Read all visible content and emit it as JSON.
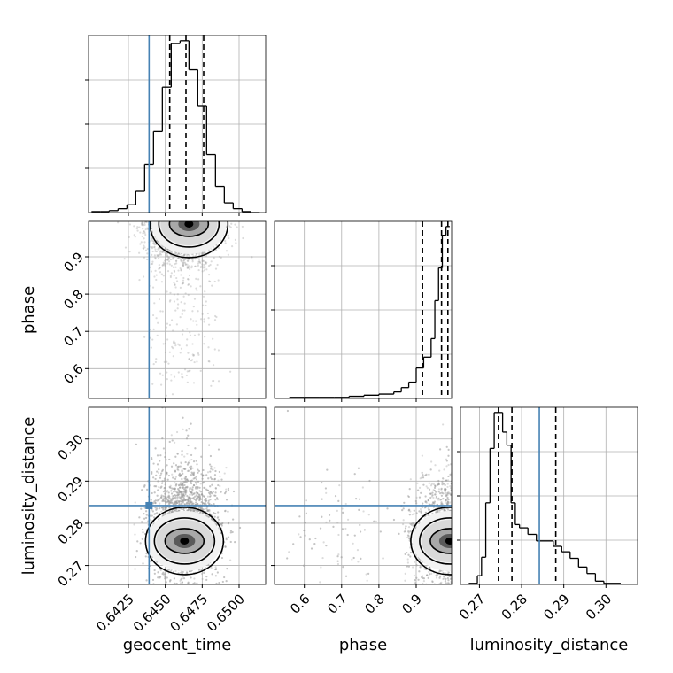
{
  "chart_data": {
    "type": "corner",
    "parameters": [
      "geocent_time",
      "phase",
      "luminosity_distance"
    ],
    "truth": {
      "geocent_time": 0.6439,
      "phase": null,
      "luminosity_distance": 0.2842
    },
    "colors": {
      "truth": "#4682b4",
      "hist": "#000000",
      "grid": "#b0b0b0",
      "samples": "#9a9a9a"
    },
    "grid": true,
    "axes": {
      "geocent_time": {
        "range": [
          0.6398,
          0.6518
        ],
        "ticks": [
          0.6425,
          0.645,
          0.6475,
          0.65
        ],
        "tick_labels": [
          "0.6425",
          "0.6450",
          "0.6475",
          "0.6500"
        ]
      },
      "phase": {
        "range": [
          0.52,
          0.995
        ],
        "ticks": [
          0.6,
          0.7,
          0.8,
          0.9
        ],
        "tick_labels": [
          "0.6",
          "0.7",
          "0.8",
          "0.9"
        ]
      },
      "luminosity_distance": {
        "range": [
          0.2655,
          0.3075
        ],
        "ticks": [
          0.27,
          0.28,
          0.29,
          0.3
        ],
        "tick_labels": [
          "0.27",
          "0.28",
          "0.29",
          "0.30"
        ]
      }
    },
    "marginals": {
      "geocent_time": {
        "bin_edges": [
          0.64,
          0.6406,
          0.6412,
          0.6418,
          0.6424,
          0.643,
          0.6436,
          0.6442,
          0.6448,
          0.6454,
          0.646,
          0.6466,
          0.6472,
          0.6478,
          0.6484,
          0.649,
          0.6496,
          0.6502,
          0.6508,
          0.6514
        ],
        "counts": [
          1,
          1,
          2,
          4,
          8,
          22,
          50,
          84,
          130,
          175,
          178,
          148,
          110,
          60,
          27,
          10,
          4,
          1,
          0
        ],
        "quantiles": [
          0.6453,
          0.6464,
          0.6476
        ]
      },
      "phase": {
        "bin_edges": [
          0.52,
          0.56,
          0.6,
          0.64,
          0.68,
          0.72,
          0.76,
          0.8,
          0.84,
          0.86,
          0.88,
          0.9,
          0.92,
          0.94,
          0.95,
          0.96,
          0.97,
          0.98,
          0.99
        ],
        "counts": [
          0,
          1,
          1,
          1,
          1,
          2,
          3,
          4,
          6,
          10,
          15,
          28,
          38,
          55,
          90,
          120,
          150,
          158
        ],
        "quantiles": [
          0.917,
          0.968,
          0.985
        ]
      },
      "luminosity_distance": {
        "bin_edges": [
          0.2655,
          0.2675,
          0.2695,
          0.2705,
          0.2715,
          0.2725,
          0.2735,
          0.2745,
          0.2755,
          0.2765,
          0.2775,
          0.2785,
          0.2795,
          0.2815,
          0.2835,
          0.2855,
          0.2875,
          0.2895,
          0.2915,
          0.2935,
          0.2955,
          0.2975,
          0.2995,
          0.3035
        ],
        "counts": [
          0,
          1,
          8,
          25,
          75,
          125,
          158,
          158,
          140,
          128,
          75,
          55,
          52,
          46,
          40,
          40,
          35,
          30,
          24,
          16,
          10,
          3,
          1
        ],
        "quantiles": [
          0.2745,
          0.2777,
          0.2881
        ]
      }
    },
    "pairs": [
      {
        "x": "geocent_time",
        "y": "phase",
        "samples": {
          "count": 2500,
          "mean": [
            0.6463,
            0.965
          ],
          "spread": [
            0.0012,
            0.05
          ]
        },
        "peak": [
          0.6466,
          0.988
        ]
      },
      {
        "x": "geocent_time",
        "y": "luminosity_distance",
        "samples": {
          "count": 3500,
          "mean": [
            0.6463,
            0.2785
          ],
          "spread": [
            0.0012,
            0.007
          ]
        },
        "peak": [
          0.6463,
          0.2758
        ]
      },
      {
        "x": "phase",
        "y": "luminosity_distance",
        "samples": {
          "count": 2000,
          "mean": [
            0.965,
            0.2785
          ],
          "spread": [
            0.05,
            0.007
          ]
        },
        "peak": [
          0.99,
          0.2758
        ]
      }
    ]
  }
}
